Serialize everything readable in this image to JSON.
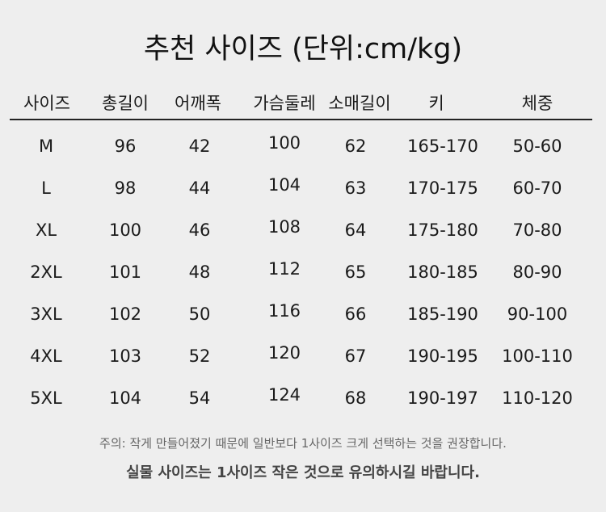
{
  "title": "추천 사이즈 (단위:cm/kg)",
  "headers": [
    "사이즈",
    "총길이",
    "어깨폭",
    "가슴둘레",
    "소매길이",
    "키",
    "체중"
  ],
  "rows": [
    [
      "M",
      "96",
      "42",
      "100",
      "62",
      "165-170",
      "50-60"
    ],
    [
      "L",
      "98",
      "44",
      "104",
      "63",
      "170-175",
      "60-70"
    ],
    [
      "XL",
      "100",
      "46",
      "108",
      "64",
      "175-180",
      "70-80"
    ],
    [
      "2XL",
      "101",
      "48",
      "112",
      "65",
      "180-185",
      "80-90"
    ],
    [
      "3XL",
      "102",
      "50",
      "116",
      "66",
      "185-190",
      "90-100"
    ],
    [
      "4XL",
      "103",
      "52",
      "120",
      "67",
      "190-195",
      "100-110"
    ],
    [
      "5XL",
      "104",
      "54",
      "124",
      "68",
      "190-197",
      "110-120"
    ]
  ],
  "notes": {
    "line1": "주의: 작게 만들어졌기 때문에 일반보다 1사이즈 크게 선택하는 것을 권장합니다.",
    "line2": "실물 사이즈는 1사이즈 작은 것으로 유의하시길 바랍니다."
  }
}
